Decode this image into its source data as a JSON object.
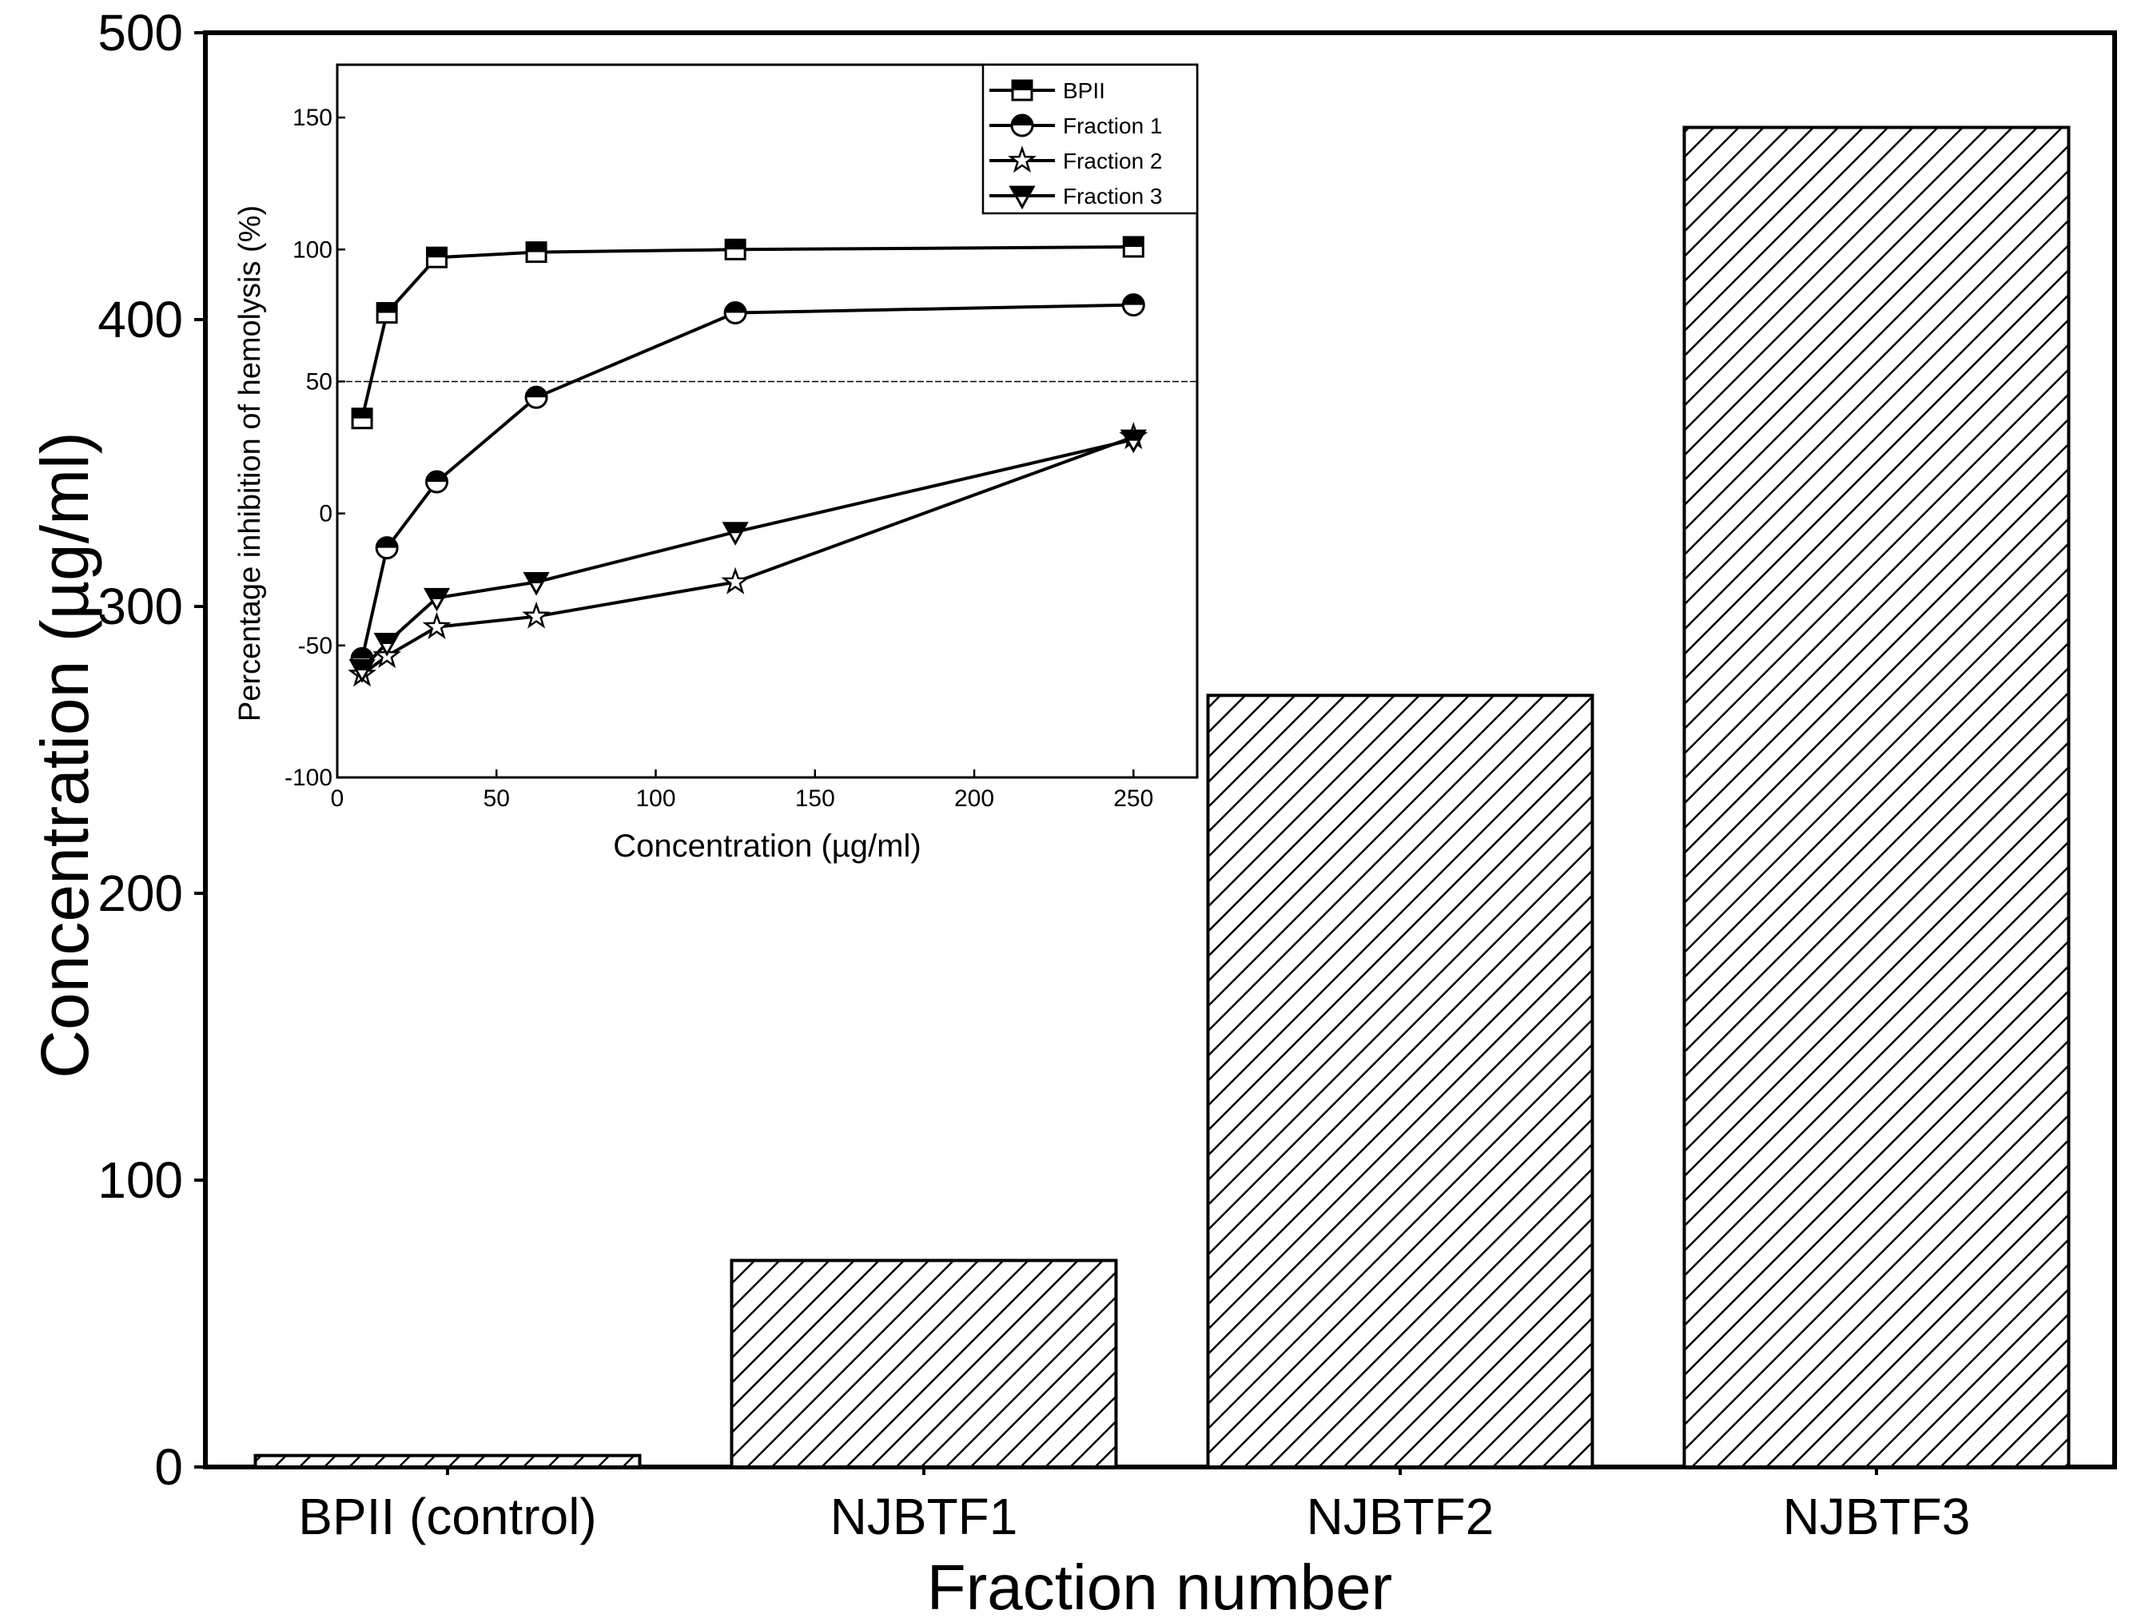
{
  "chart_data": [
    {
      "type": "bar",
      "categories": [
        "BPII (control)",
        "NJBTF1",
        "NJBTF2",
        "NJBTF3"
      ],
      "values": [
        4,
        72,
        269,
        467
      ],
      "title": "",
      "xlabel": "Fraction number",
      "ylabel": "Concentration (µg/ml)",
      "ylim": [
        0,
        500
      ],
      "yticks": [
        "0",
        "100",
        "200",
        "300",
        "400",
        "500"
      ],
      "bar_fill": "diagonal hatch"
    },
    {
      "type": "line",
      "title": "",
      "xlabel": "Concentration (µg/ml)",
      "ylabel": "Percentage inhibition of hemolysis (%)",
      "xlim": [
        0,
        270
      ],
      "ylim": [
        -100,
        170
      ],
      "xticks": [
        "0",
        "50",
        "100",
        "150",
        "200",
        "250"
      ],
      "yticks": [
        "-100",
        "-50",
        "0",
        "50",
        "100",
        "150"
      ],
      "reference_line_y": 50,
      "legend_position": "top-right",
      "x": [
        7.8,
        15.6,
        31.25,
        62.5,
        125,
        250
      ],
      "series": [
        {
          "name": "BPII",
          "marker": "square",
          "values": [
            36,
            76,
            97,
            99,
            100,
            101
          ]
        },
        {
          "name": "Fraction 1",
          "marker": "circle",
          "values": [
            -55,
            -13,
            12,
            44,
            76,
            79
          ]
        },
        {
          "name": "Fraction 2",
          "marker": "star",
          "values": [
            -61,
            -54,
            -43,
            -39,
            -26,
            29
          ]
        },
        {
          "name": "Fraction 3",
          "marker": "triangle-down",
          "values": [
            -59,
            -49,
            -32,
            -26,
            -7,
            28
          ]
        }
      ]
    }
  ]
}
